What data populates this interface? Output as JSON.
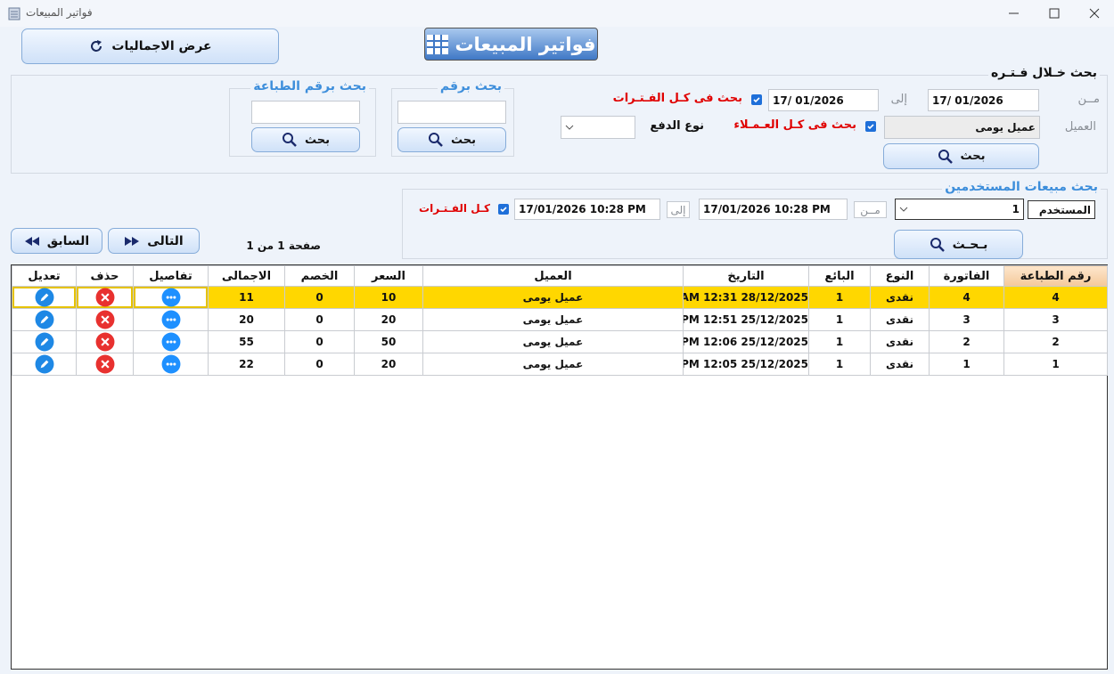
{
  "window": {
    "title": "فواتير المبيعات"
  },
  "header": {
    "totals_button": "عرض الاجماليات",
    "title": "فواتير المبيعات"
  },
  "period_search": {
    "title": "بحث خـلال فـتـره",
    "from_label": "مــن",
    "from_date": "17/ 01/2026",
    "to_label": "إلى",
    "to_date": "17/ 01/2026",
    "all_periods": "بحث فى كـل الفـتـرات",
    "customer_label": "العميل",
    "customer": "عميل يومى",
    "all_customers": "بحث فى كـل العـمـلاء",
    "payment_type_label": "نوع الدفع",
    "search_button": "بحث"
  },
  "number_search": {
    "title": "بحث برقم",
    "search_button": "بحث"
  },
  "print_number_search": {
    "title": "بحث برقم الطباعة",
    "search_button": "بحث"
  },
  "user_search": {
    "title": "بحث مبيعات المستخدمين",
    "user_label": "المستخدم",
    "user": 1,
    "from_label": "مــن",
    "from_date": "17/01/2026 10:28 PM",
    "to_label": "إلى",
    "to_date": "17/01/2026 10:28 PM",
    "all_periods": "كـل الفـتـرات",
    "search_button": "بـحـث"
  },
  "pagination": {
    "next": "التالى",
    "previous": "السابق",
    "page_info": "صفحة 1 من 1"
  },
  "table": {
    "columns": [
      "رقم الطباعة",
      "الفاتورة",
      "النوع",
      "البائع",
      "التاريخ",
      "العميل",
      "السعر",
      "الخصم",
      "الاجمالى",
      "تفاصيل",
      "حذف",
      "تعديل"
    ],
    "rows": [
      [
        4,
        4,
        "نقدى",
        1,
        "AM 12:31  28/12/2025",
        "عميل يومى",
        10,
        0,
        11
      ],
      [
        3,
        3,
        "نقدى",
        1,
        "PM 12:51  25/12/2025",
        "عميل يومى",
        20,
        0,
        20
      ],
      [
        2,
        2,
        "نقدى",
        1,
        "PM 12:06  25/12/2025",
        "عميل يومى",
        50,
        0,
        55
      ],
      [
        1,
        1,
        "نقدى",
        1,
        "PM 12:05  25/12/2025",
        "عميل يومى",
        20,
        0,
        22
      ]
    ]
  }
}
